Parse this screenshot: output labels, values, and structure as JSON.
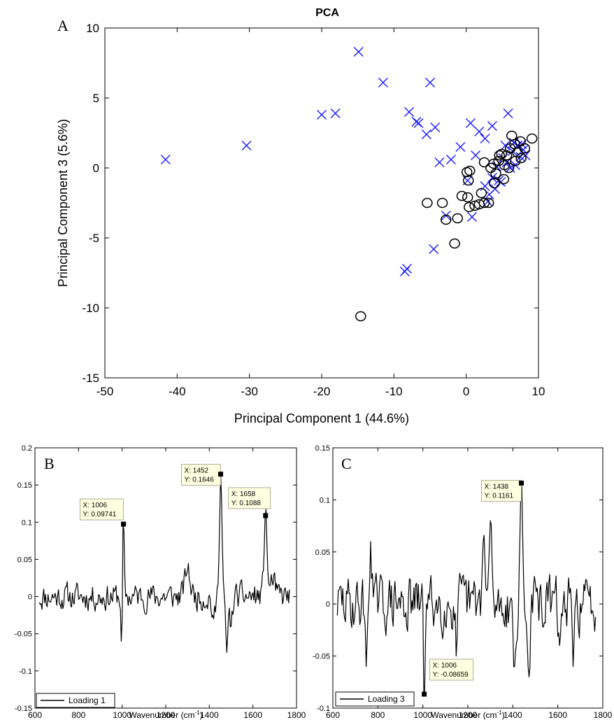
{
  "chart_data": [
    {
      "type": "scatter",
      "panel": "A",
      "title": "PCA",
      "xlabel": "Principal Component 1 (44.6%)",
      "ylabel": "Principal Component 3 (5.6%)",
      "xlim": [
        -50,
        10
      ],
      "ylim": [
        -15,
        10
      ],
      "xticks": [
        -50,
        -40,
        -30,
        -20,
        -10,
        0,
        10
      ],
      "yticks": [
        -15,
        -10,
        -5,
        0,
        5,
        10
      ],
      "series": [
        {
          "marker": "x",
          "color": "#1a1aff",
          "points": [
            [
              -41.6,
              0.6
            ],
            [
              -30.4,
              1.6
            ],
            [
              -20.0,
              3.8
            ],
            [
              -18.1,
              3.9
            ],
            [
              -14.9,
              8.3
            ],
            [
              -11.5,
              6.1
            ],
            [
              -7.9,
              4.0
            ],
            [
              -6.9,
              3.3
            ],
            [
              -6.6,
              3.2
            ],
            [
              -5.0,
              6.1
            ],
            [
              -5.5,
              2.4
            ],
            [
              -4.3,
              2.9
            ],
            [
              -2.1,
              0.6
            ],
            [
              -3.7,
              0.4
            ],
            [
              -0.8,
              1.5
            ],
            [
              0.6,
              3.2
            ],
            [
              1.8,
              2.6
            ],
            [
              2.6,
              2.1
            ],
            [
              3.6,
              3.0
            ],
            [
              5.8,
              3.9
            ],
            [
              -8.5,
              -7.4
            ],
            [
              -8.2,
              -7.2
            ],
            [
              -4.5,
              -5.8
            ],
            [
              0.8,
              -3.5
            ],
            [
              -2.8,
              -3.4
            ],
            [
              3.0,
              -2.4
            ],
            [
              4.0,
              -1.5
            ],
            [
              4.8,
              -1.0
            ],
            [
              5.6,
              0.4
            ],
            [
              6.4,
              1.2
            ],
            [
              7.1,
              1.6
            ],
            [
              7.5,
              0.8
            ],
            [
              6.1,
              0.0
            ],
            [
              5.1,
              0.7
            ],
            [
              3.6,
              -0.7
            ],
            [
              6.8,
              0.2
            ],
            [
              4.5,
              -0.9
            ],
            [
              7.9,
              1.3
            ],
            [
              8.2,
              0.9
            ],
            [
              5.4,
              1.6
            ],
            [
              3.2,
              -1.9
            ],
            [
              2.6,
              -1.3
            ],
            [
              1.3,
              0.9
            ],
            [
              0.2,
              -0.9
            ],
            [
              6.6,
              1.8
            ],
            [
              7.7,
              1.7
            ],
            [
              4.2,
              0.1
            ]
          ]
        },
        {
          "marker": "o",
          "color": "#000000",
          "points": [
            [
              -14.6,
              -10.6
            ],
            [
              -1.6,
              -5.4
            ],
            [
              -5.4,
              -2.5
            ],
            [
              -3.3,
              -2.5
            ],
            [
              -1.2,
              -3.6
            ],
            [
              -2.8,
              -3.7
            ],
            [
              -0.6,
              -2.0
            ],
            [
              0.2,
              -2.1
            ],
            [
              0.4,
              -2.8
            ],
            [
              1.2,
              -2.7
            ],
            [
              1.8,
              -2.6
            ],
            [
              2.5,
              -2.5
            ],
            [
              3.1,
              -2.5
            ],
            [
              0.1,
              -0.3
            ],
            [
              0.5,
              -0.2
            ],
            [
              0.3,
              -0.9
            ],
            [
              2.5,
              0.4
            ],
            [
              3.4,
              0.0
            ],
            [
              3.8,
              0.3
            ],
            [
              4.1,
              -0.4
            ],
            [
              4.5,
              0.5
            ],
            [
              4.9,
              1.0
            ],
            [
              5.3,
              0.2
            ],
            [
              5.6,
              0.9
            ],
            [
              6.1,
              1.4
            ],
            [
              6.3,
              2.3
            ],
            [
              6.8,
              0.5
            ],
            [
              7.1,
              1.1
            ],
            [
              7.5,
              1.9
            ],
            [
              8.1,
              1.4
            ],
            [
              9.1,
              2.1
            ],
            [
              5.2,
              -0.8
            ],
            [
              3.9,
              -1.1
            ],
            [
              2.1,
              -1.8
            ],
            [
              4.6,
              0.9
            ],
            [
              5.9,
              0.0
            ],
            [
              6.7,
              1.7
            ],
            [
              7.6,
              0.7
            ]
          ]
        }
      ]
    },
    {
      "type": "line",
      "panel": "B",
      "xlabel": "Wavenumber (cm",
      "xlabel_sup": "-1",
      "xlabel_end": ")",
      "xlim": [
        600,
        1800
      ],
      "ylim": [
        -0.15,
        0.2
      ],
      "xticks": [
        600,
        800,
        1000,
        1200,
        1400,
        1600,
        1800
      ],
      "yticks": [
        -0.15,
        -0.1,
        -0.05,
        0,
        0.05,
        0.1,
        0.15,
        0.2
      ],
      "yticklabels": [
        "-0.15",
        "-0.1",
        "-0.05",
        "0",
        "0.05",
        "0.1",
        "0.15",
        "0.2"
      ],
      "series": [
        {
          "name": "Loading 1",
          "x_start": 620,
          "x_end": 1770,
          "step": 4,
          "noise": 0.028,
          "seed": 11,
          "features": [
            [
              1006,
              0.09741,
              3
            ],
            [
              998,
              -0.06,
              3
            ],
            [
              1300,
              0.035,
              12
            ],
            [
              1420,
              -0.03,
              8
            ],
            [
              1452,
              0.1646,
              6
            ],
            [
              1480,
              -0.075,
              6
            ],
            [
              1500,
              -0.04,
              6
            ],
            [
              1658,
              0.1088,
              7
            ],
            [
              1690,
              0.02,
              10
            ]
          ]
        }
      ],
      "datatips": [
        {
          "x_value": 1006,
          "y_value": 0.09741,
          "x_text": "X: 1006",
          "y_text": "Y: 0.09741"
        },
        {
          "x_value": 1452,
          "y_value": 0.1646,
          "x_text": "X: 1452",
          "y_text": "Y: 0.1646"
        },
        {
          "x_value": 1658,
          "y_value": 0.1088,
          "x_text": "X: 1658",
          "y_text": "Y: 0.1088"
        }
      ]
    },
    {
      "type": "line",
      "panel": "C",
      "xlabel": "Wavenumber (cm",
      "xlabel_sup": "-1",
      "xlabel_end": ")",
      "xlim": [
        600,
        1800
      ],
      "ylim": [
        -0.1,
        0.15
      ],
      "xticks": [
        600,
        800,
        1000,
        1200,
        1400,
        1600,
        1800
      ],
      "yticks": [
        -0.1,
        -0.05,
        0,
        0.05,
        0.1,
        0.15
      ],
      "yticklabels": [
        "-0.1",
        "-0.05",
        "0",
        "0.05",
        "0.1",
        "0.15"
      ],
      "series": [
        {
          "name": "Loading 3",
          "x_start": 620,
          "x_end": 1770,
          "step": 4,
          "noise": 0.04,
          "seed": 29,
          "features": [
            [
              750,
              -0.06,
              4
            ],
            [
              770,
              0.06,
              5
            ],
            [
              1006,
              -0.08659,
              3
            ],
            [
              1150,
              -0.05,
              5
            ],
            [
              1270,
              0.06,
              6
            ],
            [
              1300,
              0.08,
              5
            ],
            [
              1410,
              -0.06,
              6
            ],
            [
              1438,
              0.1161,
              5
            ],
            [
              1470,
              -0.06,
              6
            ],
            [
              1610,
              -0.04,
              6
            ],
            [
              1670,
              -0.06,
              5
            ]
          ]
        }
      ],
      "datatips": [
        {
          "x_value": 1438,
          "y_value": 0.1161,
          "x_text": "X: 1438",
          "y_text": "Y: 0.1161"
        },
        {
          "x_value": 1006,
          "y_value": -0.08659,
          "x_text": "X: 1006",
          "y_text": "Y: -0.08659"
        }
      ]
    }
  ]
}
